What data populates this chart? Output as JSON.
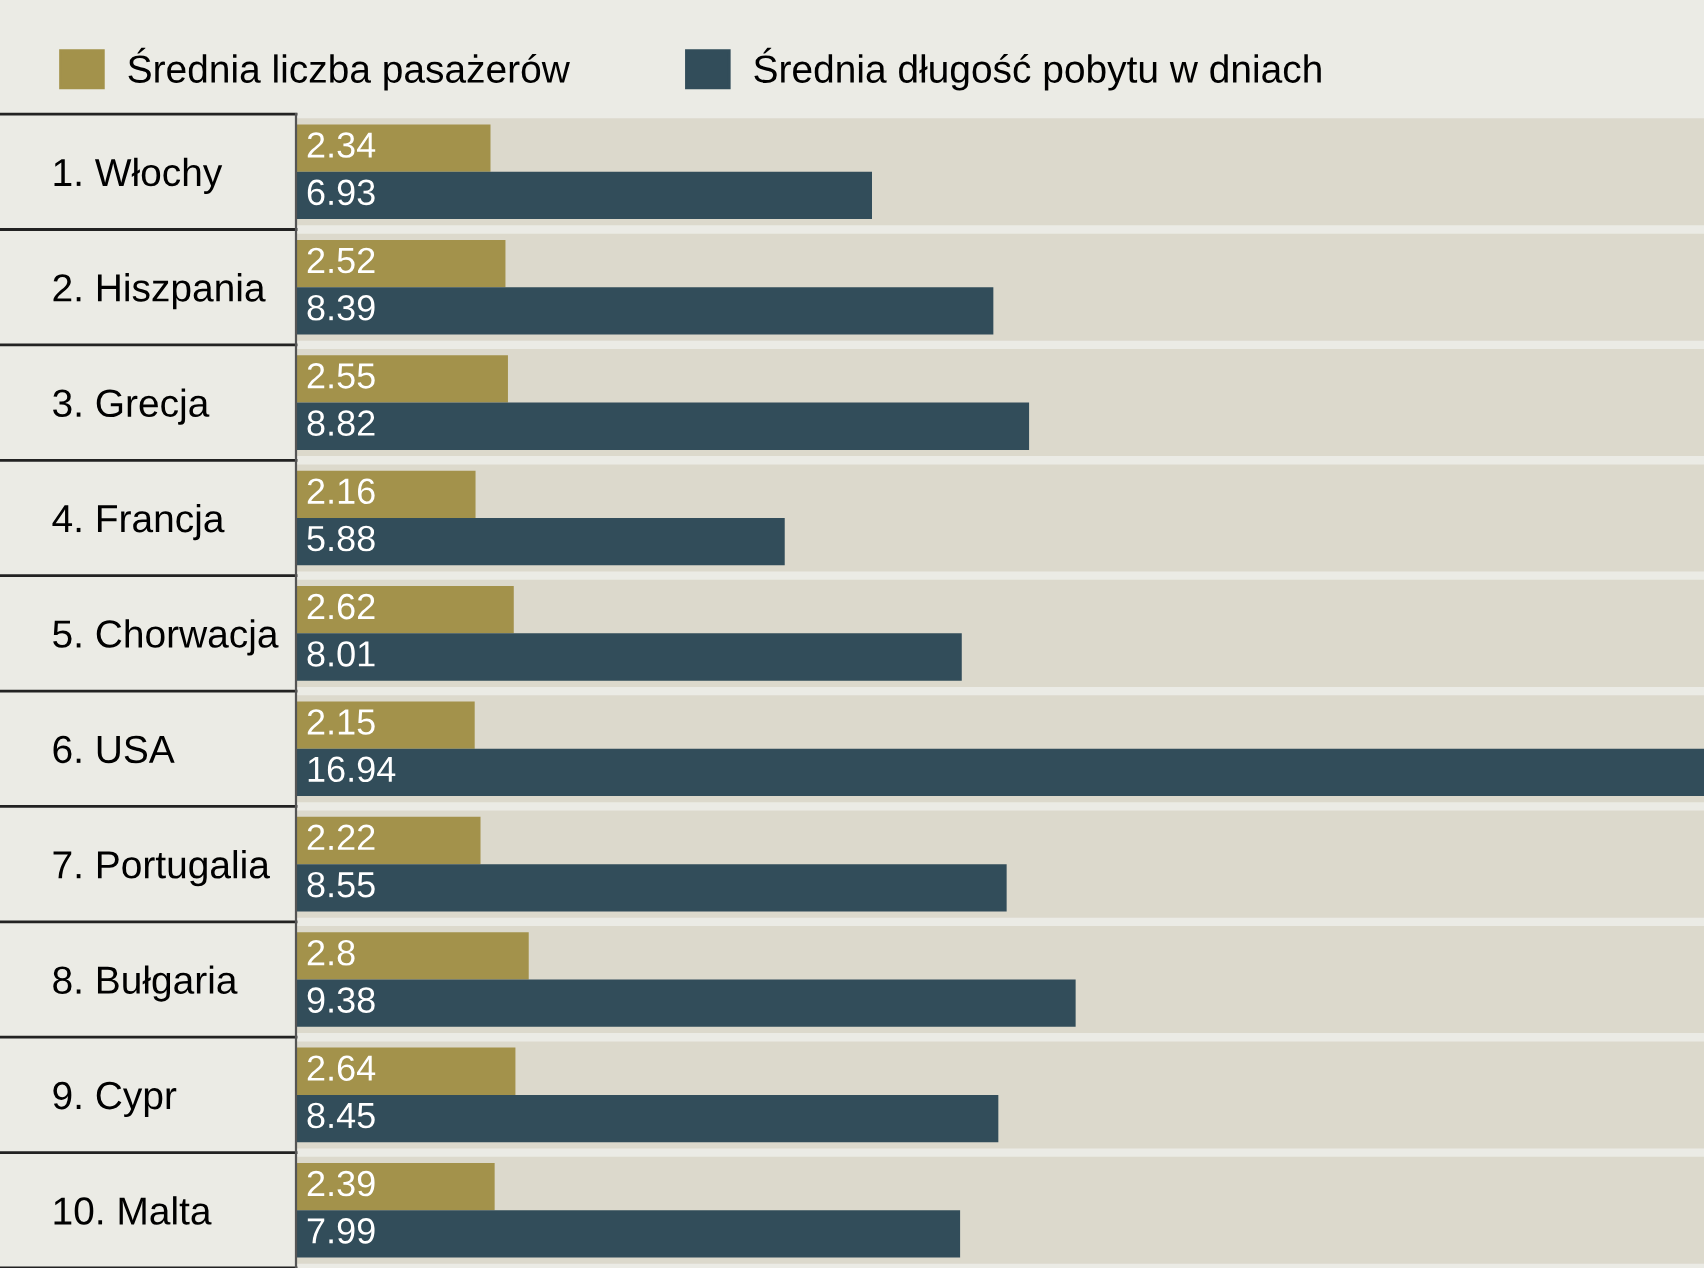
{
  "chart_data": {
    "type": "bar",
    "orientation": "horizontal",
    "categories": [
      "1. Włochy",
      "2. Hiszpania",
      "3. Grecja",
      "4. Francja",
      "5. Chorwacja",
      "6. USA",
      "7. Portugalia",
      "8. Bułgaria",
      "9. Cypr",
      "10. Malta"
    ],
    "series": [
      {
        "name": "Średnia liczba pasażerów",
        "color": "#a3924b",
        "values": [
          2.34,
          2.52,
          2.55,
          2.16,
          2.62,
          2.15,
          2.22,
          2.8,
          2.64,
          2.39
        ]
      },
      {
        "name": "Średnia długość pobytu w dniach",
        "color": "#324d5a",
        "values": [
          6.93,
          8.39,
          8.82,
          5.88,
          8.01,
          16.94,
          8.55,
          9.38,
          8.45,
          7.99
        ]
      }
    ],
    "data_labels": true,
    "legend": "top left",
    "tick_labels": "y",
    "grid": false
  }
}
